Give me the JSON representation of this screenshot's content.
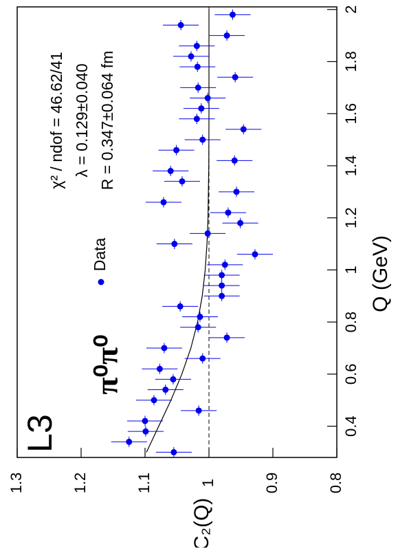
{
  "chart_data": {
    "type": "scatter",
    "xlabel": "Q (GeV)",
    "ylabel": "C₂(Q)",
    "xlim": [
      0.28,
      2.01
    ],
    "ylim": [
      0.8,
      1.3
    ],
    "xticks": [
      0.4,
      0.6,
      0.8,
      1,
      1.2,
      1.4,
      1.6,
      1.8,
      2
    ],
    "yticks": [
      0.8,
      0.9,
      1,
      1.1,
      1.2,
      1.3
    ],
    "x": [
      0.3,
      0.34,
      0.38,
      0.42,
      0.46,
      0.5,
      0.54,
      0.58,
      0.62,
      0.66,
      0.7,
      0.74,
      0.78,
      0.82,
      0.86,
      0.9,
      0.94,
      0.98,
      1.02,
      1.06,
      1.1,
      1.14,
      1.18,
      1.22,
      1.26,
      1.3,
      1.34,
      1.38,
      1.42,
      1.46,
      1.5,
      1.54,
      1.58,
      1.62,
      1.66,
      1.7,
      1.74,
      1.78,
      1.82,
      1.86,
      1.9,
      1.94,
      1.98
    ],
    "xerr": 0.02,
    "series": [
      {
        "name": "Data",
        "color": "#0000ee",
        "values": [
          1.055,
          1.125,
          1.099,
          1.1,
          1.016,
          1.086,
          1.068,
          1.056,
          1.077,
          1.01,
          1.07,
          0.972,
          1.017,
          1.014,
          1.045,
          0.98,
          0.98,
          0.98,
          0.975,
          0.928,
          1.054,
          1.002,
          0.951,
          0.97,
          1.071,
          0.957,
          1.042,
          1.06,
          0.96,
          1.051,
          1.01,
          0.946,
          1.019,
          1.012,
          1.002,
          1.017,
          0.959,
          1.018,
          1.028,
          1.019,
          0.972,
          1.044,
          0.963
        ],
        "errors": [
          0.028,
          0.028,
          0.028,
          0.028,
          0.028,
          0.028,
          0.028,
          0.028,
          0.028,
          0.028,
          0.028,
          0.028,
          0.028,
          0.028,
          0.028,
          0.028,
          0.028,
          0.028,
          0.028,
          0.028,
          0.028,
          0.028,
          0.028,
          0.028,
          0.028,
          0.028,
          0.028,
          0.028,
          0.028,
          0.028,
          0.028,
          0.028,
          0.028,
          0.028,
          0.028,
          0.028,
          0.028,
          0.028,
          0.028,
          0.028,
          0.028,
          0.028,
          0.028
        ]
      }
    ],
    "fit": {
      "x": [
        0.3,
        0.4,
        0.5,
        0.6,
        0.7,
        0.8,
        0.9,
        1.0,
        1.1,
        1.2,
        1.4,
        1.6,
        2.0
      ],
      "y": [
        1.0977,
        1.0786,
        1.0595,
        1.0424,
        1.0283,
        1.0178,
        1.0105,
        1.0059,
        1.0031,
        1.0015,
        1.0003,
        1.0,
        1.0
      ]
    },
    "hline": 1,
    "annotations": {
      "experiment": "L3",
      "channel": "π⁰π⁰",
      "channel_color": "#0000ee",
      "chi2": "χ² / ndof = 46.62/41",
      "lambda": "λ = 0.129±0.040",
      "radius": "R = 0.347±0.064 fm"
    }
  }
}
